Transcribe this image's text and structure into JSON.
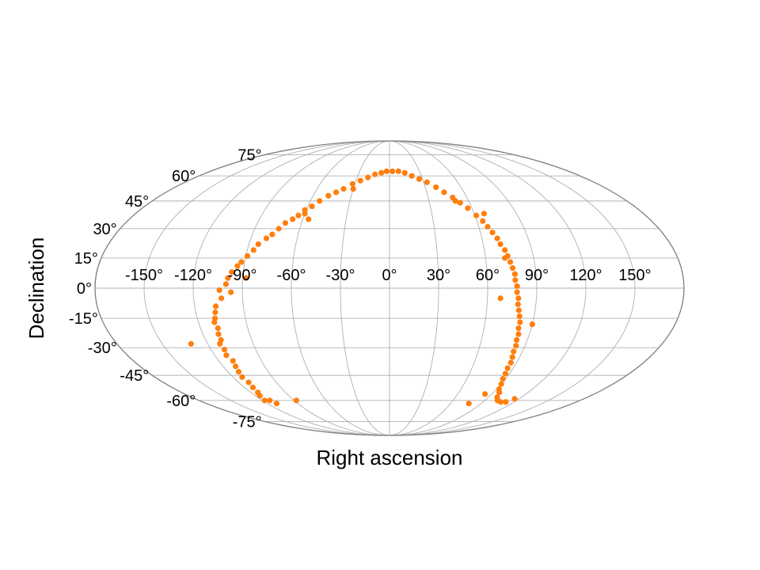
{
  "chart_data": {
    "type": "scatter",
    "projection": "mollweide",
    "title": "",
    "xlabel": "Right ascension",
    "ylabel": "Declination",
    "xlim": [
      -180,
      180
    ],
    "ylim": [
      -90,
      90
    ],
    "grid": true,
    "x_tick_labels": [
      "-150°",
      "-120°",
      "-90°",
      "-60°",
      "-30°",
      "0°",
      "30°",
      "60°",
      "90°",
      "120°",
      "150°"
    ],
    "y_tick_labels": [
      "-75°",
      "-60°",
      "-45°",
      "-30°",
      "-15°",
      "0°",
      "15°",
      "30°",
      "45°",
      "60°",
      "75°"
    ],
    "x_tick_values": [
      -150,
      -120,
      -90,
      -60,
      -30,
      0,
      30,
      60,
      90,
      120,
      150
    ],
    "y_tick_values": [
      -75,
      -60,
      -45,
      -30,
      -15,
      0,
      15,
      30,
      45,
      60,
      75
    ],
    "colors": {
      "points": "#ff7f0e",
      "grid": "#b0b0b0",
      "outline": "#808080"
    },
    "series": [
      {
        "points": [
          [
            -118,
            -60
          ],
          [
            -116,
            -57
          ],
          [
            -113,
            -60
          ],
          [
            -111,
            -62
          ],
          [
            -114,
            -55
          ],
          [
            -113,
            -52
          ],
          [
            -112,
            -49
          ],
          [
            -113,
            -46
          ],
          [
            -112,
            -43
          ],
          [
            -111,
            -40
          ],
          [
            -110,
            -37
          ],
          [
            -112,
            -34
          ],
          [
            -111,
            -31
          ],
          [
            -112,
            -28
          ],
          [
            -110,
            -26
          ],
          [
            -110,
            -23
          ],
          [
            -109,
            -20
          ],
          [
            -110,
            -17
          ],
          [
            -109,
            -15
          ],
          [
            -108,
            -12
          ],
          [
            -107,
            -9
          ],
          [
            -103,
            -5
          ],
          [
            -104,
            -1
          ],
          [
            -100,
            2
          ],
          [
            -99,
            5
          ],
          [
            -97,
            8
          ],
          [
            -94,
            11
          ],
          [
            -92,
            13
          ],
          [
            -89,
            16
          ],
          [
            -86,
            19
          ],
          [
            -84,
            22
          ],
          [
            -80,
            25
          ],
          [
            -77,
            27
          ],
          [
            -74,
            30
          ],
          [
            -71,
            33
          ],
          [
            -67,
            35
          ],
          [
            -64,
            37
          ],
          [
            -61,
            40
          ],
          [
            -57,
            42
          ],
          [
            -53,
            45
          ],
          [
            -48,
            48
          ],
          [
            -43,
            50
          ],
          [
            -38,
            52
          ],
          [
            -32,
            55
          ],
          [
            -26,
            57
          ],
          [
            -20,
            59
          ],
          [
            -14,
            61
          ],
          [
            -8,
            62
          ],
          [
            -3,
            63
          ],
          [
            3,
            63
          ],
          [
            9,
            63
          ],
          [
            15,
            62
          ],
          [
            21,
            60
          ],
          [
            27,
            58
          ],
          [
            33,
            56
          ],
          [
            39,
            53
          ],
          [
            44,
            50
          ],
          [
            49,
            47
          ],
          [
            53,
            44
          ],
          [
            57,
            41
          ],
          [
            61,
            37
          ],
          [
            64,
            34
          ],
          [
            66,
            31
          ],
          [
            68,
            28
          ],
          [
            70,
            25
          ],
          [
            71,
            22
          ],
          [
            73,
            19
          ],
          [
            74,
            16
          ],
          [
            75,
            13
          ],
          [
            76,
            10
          ],
          [
            77,
            7
          ],
          [
            77,
            4
          ],
          [
            78,
            1
          ],
          [
            78,
            -2
          ],
          [
            79,
            -5
          ],
          [
            79,
            -8
          ],
          [
            80,
            -11
          ],
          [
            81,
            -14
          ],
          [
            82,
            -17
          ],
          [
            82,
            -20
          ],
          [
            83,
            -23
          ],
          [
            83,
            -26
          ],
          [
            84,
            -29
          ],
          [
            84,
            -32
          ],
          [
            85,
            -35
          ],
          [
            86,
            -38
          ],
          [
            86,
            -41
          ],
          [
            87,
            -44
          ],
          [
            88,
            -47
          ],
          [
            90,
            -50
          ],
          [
            92,
            -53
          ],
          [
            95,
            -55
          ],
          [
            98,
            -58
          ],
          [
            102,
            -60
          ],
          [
            107,
            -61
          ],
          [
            112,
            -61
          ],
          [
            116,
            -59
          ],
          [
            -131,
            -28
          ],
          [
            -97,
            -2
          ],
          [
            -88,
            5
          ],
          [
            -56,
            35
          ],
          [
            67,
            38
          ],
          [
            68,
            -5
          ],
          [
            90,
            -18
          ],
          [
            78,
            -62
          ],
          [
            -88,
            -60
          ],
          [
            -60,
            38
          ],
          [
            -30,
            52
          ],
          [
            50,
            45
          ],
          [
            72,
            15
          ],
          [
            84,
            -56
          ]
        ]
      }
    ]
  }
}
